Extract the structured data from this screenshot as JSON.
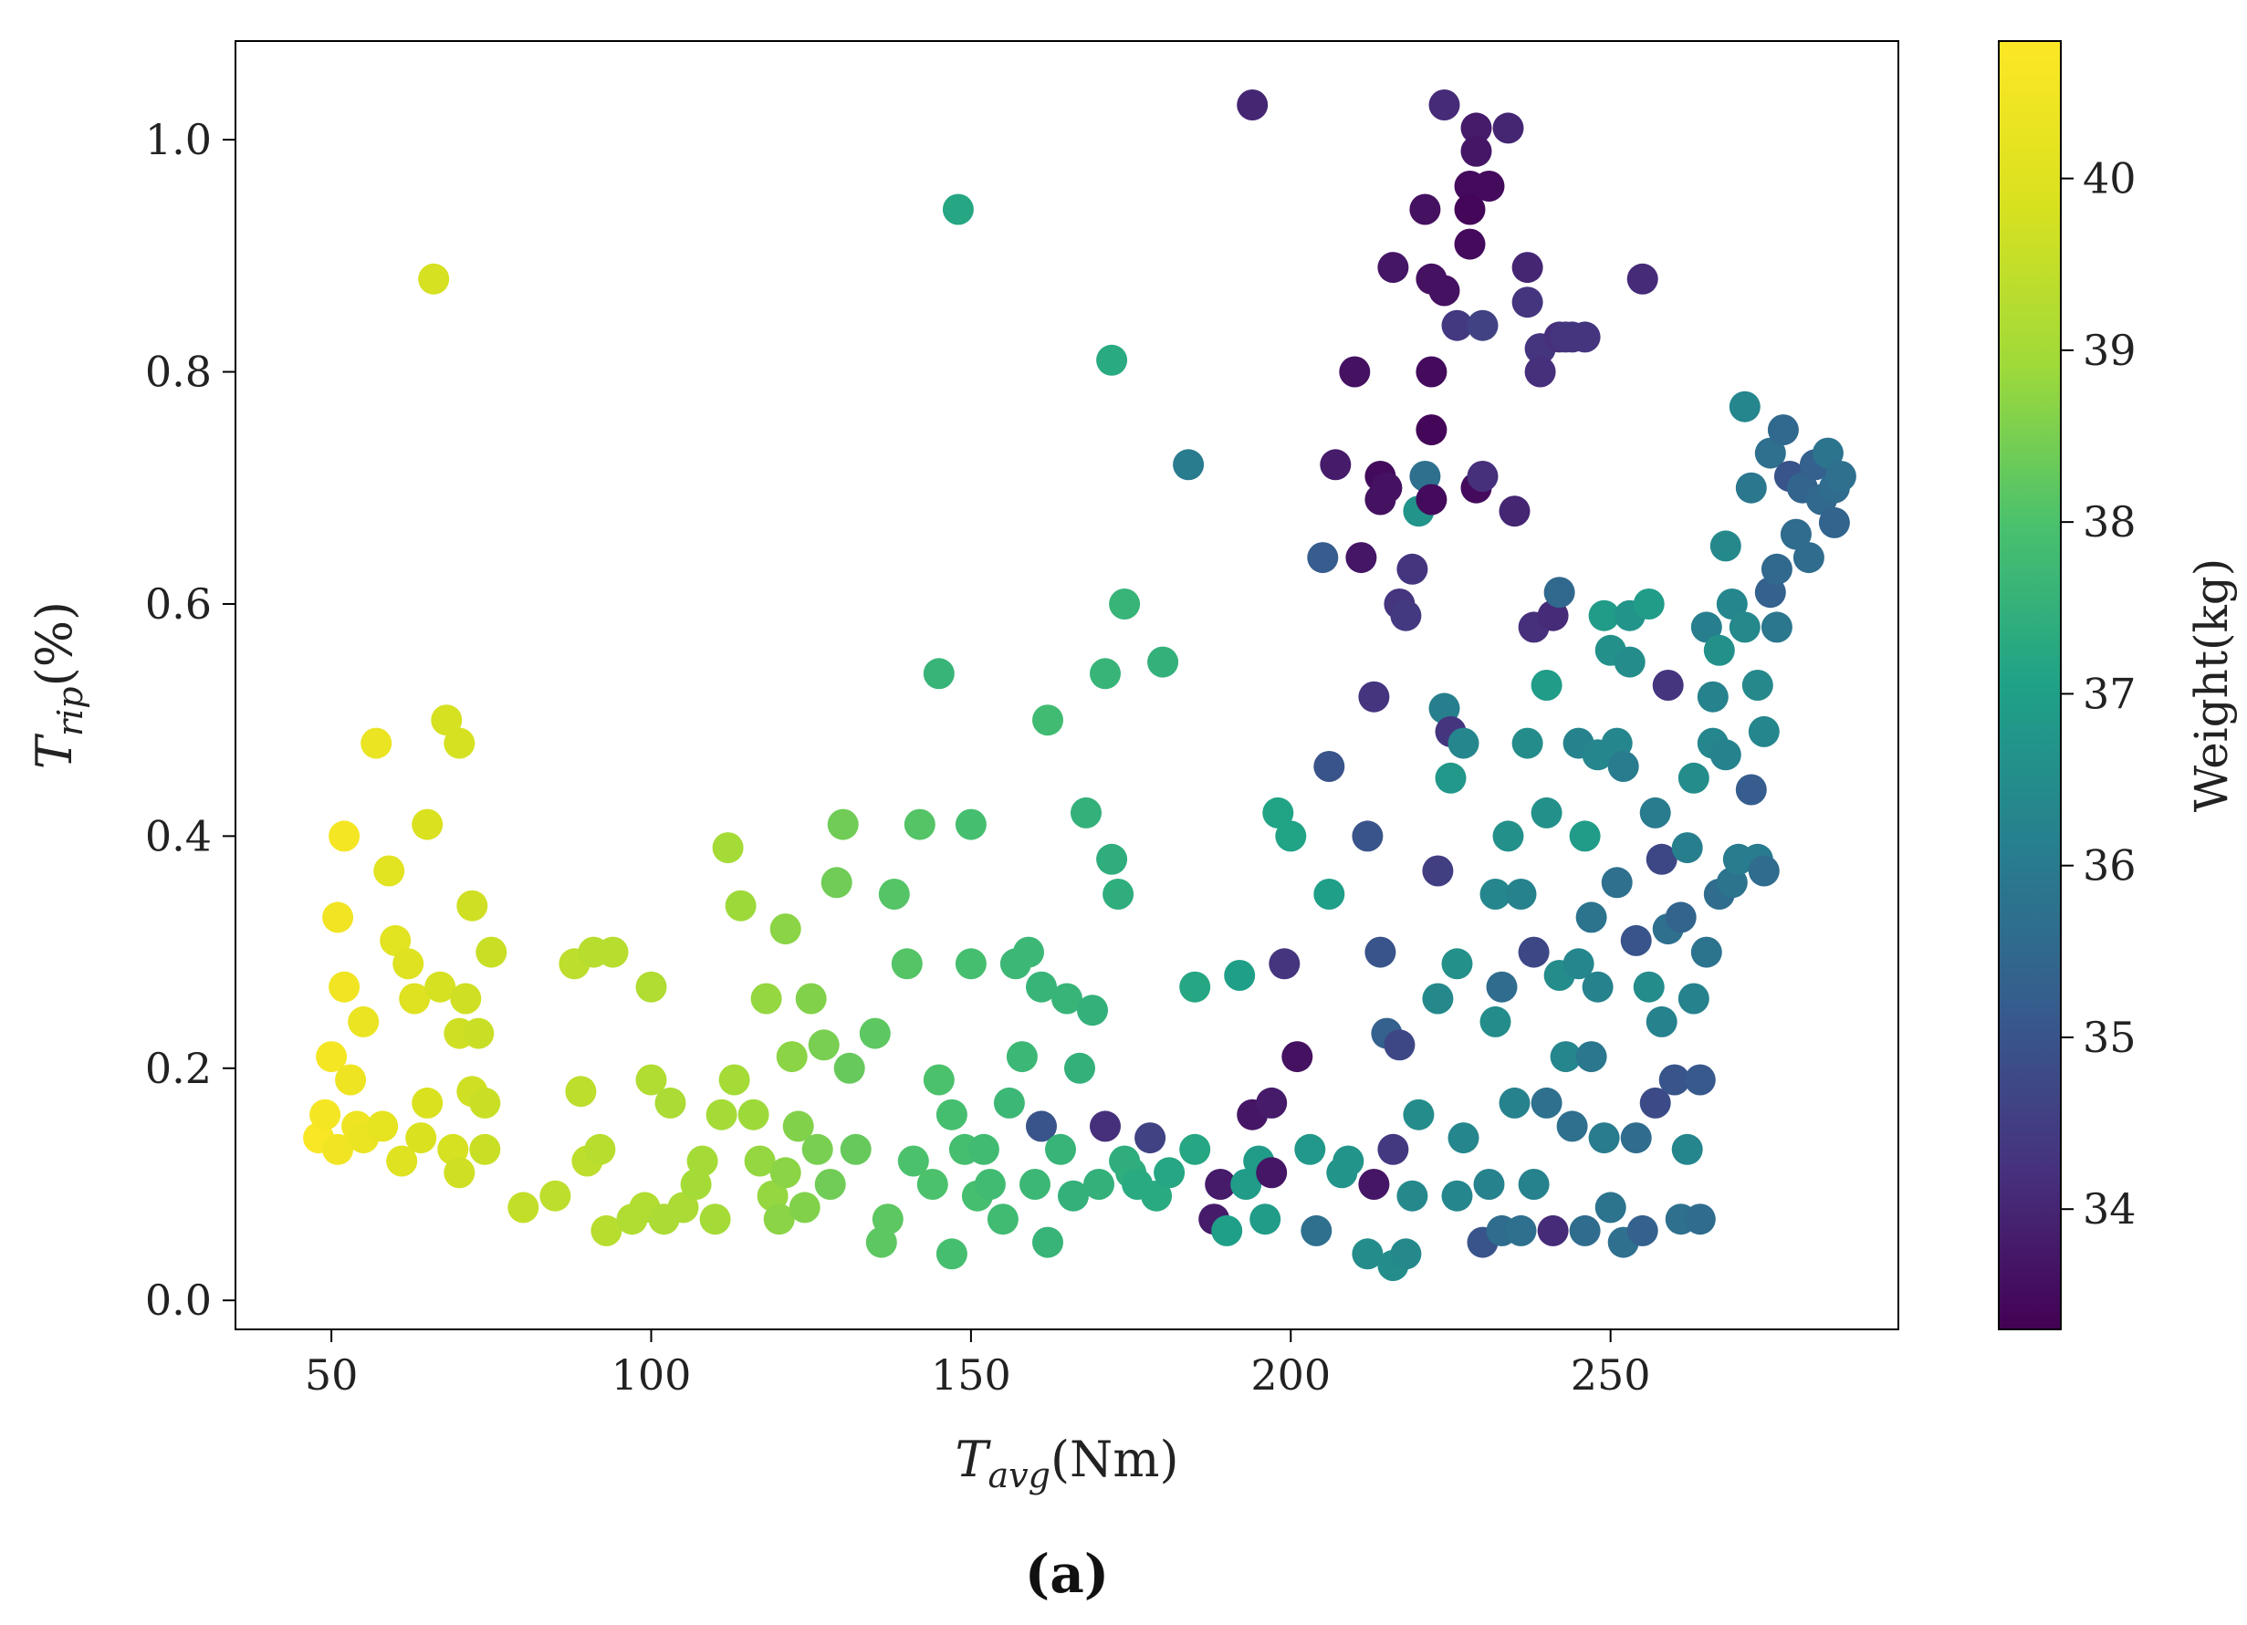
{
  "chart_data": {
    "type": "scatter",
    "title": "",
    "caption": "(a)",
    "xlabel": {
      "main": "T",
      "sub": "avg",
      "unit": "(Nm)"
    },
    "ylabel": {
      "main": "T",
      "sub": "rip",
      "unit": "(%)"
    },
    "xlim": [
      35,
      295
    ],
    "ylim": [
      -0.025,
      1.085
    ],
    "xticks": [
      50,
      100,
      150,
      200,
      250
    ],
    "yticks": [
      0.0,
      0.2,
      0.4,
      0.6,
      0.8,
      1.0
    ],
    "xtick_labels": [
      "50",
      "100",
      "150",
      "200",
      "250"
    ],
    "ytick_labels": [
      "0.0",
      "0.2",
      "0.4",
      "0.6",
      "0.8",
      "1.0"
    ],
    "grid": false,
    "legend": "none",
    "colorbar": {
      "label": "Weight(kg)",
      "colormap": "viridis",
      "range": [
        33.3,
        40.8
      ],
      "ticks": [
        34,
        35,
        36,
        37,
        38,
        39,
        40
      ],
      "tick_labels": [
        "34",
        "35",
        "36",
        "37",
        "38",
        "39",
        "40"
      ]
    },
    "points": [
      [
        48,
        0.14,
        40.7
      ],
      [
        49,
        0.16,
        40.6
      ],
      [
        50,
        0.21,
        40.6
      ],
      [
        51,
        0.13,
        40.5
      ],
      [
        52,
        0.4,
        40.6
      ],
      [
        51,
        0.33,
        40.5
      ],
      [
        52,
        0.27,
        40.5
      ],
      [
        53,
        0.19,
        40.4
      ],
      [
        54,
        0.15,
        40.4
      ],
      [
        55,
        0.24,
        40.3
      ],
      [
        55,
        0.14,
        40.3
      ],
      [
        57,
        0.48,
        40.3
      ],
      [
        58,
        0.15,
        40.2
      ],
      [
        59,
        0.37,
        40.1
      ],
      [
        60,
        0.31,
        40.1
      ],
      [
        61,
        0.12,
        40.0
      ],
      [
        62,
        0.29,
        40.0
      ],
      [
        63,
        0.26,
        40.0
      ],
      [
        64,
        0.14,
        39.9
      ],
      [
        65,
        0.17,
        39.9
      ],
      [
        65,
        0.41,
        39.9
      ],
      [
        66,
        0.88,
        39.8
      ],
      [
        67,
        0.27,
        39.8
      ],
      [
        68,
        0.5,
        39.8
      ],
      [
        69,
        0.13,
        39.8
      ],
      [
        70,
        0.11,
        39.7
      ],
      [
        70,
        0.48,
        39.8
      ],
      [
        70,
        0.23,
        39.7
      ],
      [
        71,
        0.26,
        39.7
      ],
      [
        72,
        0.34,
        39.7
      ],
      [
        72,
        0.18,
        39.7
      ],
      [
        73,
        0.23,
        39.6
      ],
      [
        74,
        0.17,
        39.6
      ],
      [
        74,
        0.13,
        39.6
      ],
      [
        75,
        0.3,
        39.6
      ],
      [
        80,
        0.08,
        39.5
      ],
      [
        85,
        0.09,
        39.4
      ],
      [
        88,
        0.29,
        39.4
      ],
      [
        89,
        0.18,
        39.4
      ],
      [
        90,
        0.12,
        39.4
      ],
      [
        91,
        0.3,
        39.3
      ],
      [
        92,
        0.13,
        39.3
      ],
      [
        93,
        0.06,
        39.3
      ],
      [
        94,
        0.3,
        39.3
      ],
      [
        97,
        0.07,
        39.2
      ],
      [
        99,
        0.08,
        39.2
      ],
      [
        100,
        0.27,
        39.2
      ],
      [
        100,
        0.19,
        39.2
      ],
      [
        102,
        0.07,
        39.1
      ],
      [
        103,
        0.17,
        39.1
      ],
      [
        105,
        0.08,
        39.1
      ],
      [
        107,
        0.1,
        39.0
      ],
      [
        108,
        0.12,
        39.0
      ],
      [
        110,
        0.07,
        39.0
      ],
      [
        111,
        0.16,
        39.0
      ],
      [
        112,
        0.39,
        39.0
      ],
      [
        113,
        0.19,
        39.0
      ],
      [
        114,
        0.34,
        38.9
      ],
      [
        116,
        0.16,
        38.9
      ],
      [
        117,
        0.12,
        38.8
      ],
      [
        118,
        0.26,
        38.8
      ],
      [
        119,
        0.09,
        38.8
      ],
      [
        120,
        0.07,
        38.7
      ],
      [
        121,
        0.11,
        38.7
      ],
      [
        121,
        0.32,
        38.7
      ],
      [
        122,
        0.21,
        38.7
      ],
      [
        123,
        0.15,
        38.6
      ],
      [
        124,
        0.08,
        38.6
      ],
      [
        125,
        0.26,
        38.6
      ],
      [
        126,
        0.13,
        38.5
      ],
      [
        127,
        0.22,
        38.5
      ],
      [
        128,
        0.1,
        38.4
      ],
      [
        129,
        0.36,
        38.4
      ],
      [
        130,
        0.41,
        38.4
      ],
      [
        131,
        0.2,
        38.3
      ],
      [
        132,
        0.13,
        38.3
      ],
      [
        135,
        0.23,
        38.2
      ],
      [
        136,
        0.05,
        38.2
      ],
      [
        137,
        0.07,
        38.2
      ],
      [
        138,
        0.35,
        38.1
      ],
      [
        140,
        0.29,
        38.1
      ],
      [
        141,
        0.12,
        38.0
      ],
      [
        142,
        0.41,
        38.1
      ],
      [
        144,
        0.1,
        38.0
      ],
      [
        145,
        0.19,
        38.0
      ],
      [
        145,
        0.54,
        37.6
      ],
      [
        147,
        0.16,
        37.9
      ],
      [
        147,
        0.04,
        37.9
      ],
      [
        148,
        0.94,
        37.2
      ],
      [
        149,
        0.13,
        37.9
      ],
      [
        150,
        0.41,
        37.9
      ],
      [
        150,
        0.29,
        37.9
      ],
      [
        151,
        0.09,
        37.9
      ],
      [
        152,
        0.13,
        37.8
      ],
      [
        153,
        0.1,
        37.8
      ],
      [
        155,
        0.07,
        37.8
      ],
      [
        156,
        0.17,
        37.7
      ],
      [
        157,
        0.29,
        37.7
      ],
      [
        158,
        0.21,
        37.7
      ],
      [
        159,
        0.3,
        37.7
      ],
      [
        160,
        0.1,
        37.7
      ],
      [
        161,
        0.15,
        35.0
      ],
      [
        161,
        0.27,
        37.6
      ],
      [
        162,
        0.05,
        37.6
      ],
      [
        162,
        0.5,
        37.8
      ],
      [
        164,
        0.13,
        37.6
      ],
      [
        165,
        0.26,
        37.6
      ],
      [
        166,
        0.09,
        37.5
      ],
      [
        167,
        0.2,
        37.5
      ],
      [
        168,
        0.42,
        37.5
      ],
      [
        169,
        0.25,
        37.5
      ],
      [
        170,
        0.1,
        37.5
      ],
      [
        171,
        0.15,
        34.2
      ],
      [
        171,
        0.54,
        37.6
      ],
      [
        172,
        0.81,
        37.3
      ],
      [
        172,
        0.38,
        37.4
      ],
      [
        173,
        0.35,
        37.4
      ],
      [
        174,
        0.6,
        37.6
      ],
      [
        174,
        0.12,
        37.4
      ],
      [
        175,
        0.11,
        37.4
      ],
      [
        176,
        0.1,
        37.3
      ],
      [
        178,
        0.14,
        34.6
      ],
      [
        179,
        0.09,
        37.3
      ],
      [
        180,
        0.55,
        37.5
      ],
      [
        181,
        0.11,
        37.2
      ],
      [
        184,
        0.72,
        36.0
      ],
      [
        185,
        0.27,
        37.2
      ],
      [
        185,
        0.13,
        37.2
      ],
      [
        188,
        0.07,
        33.8
      ],
      [
        189,
        0.1,
        33.8
      ],
      [
        190,
        0.06,
        37.0
      ],
      [
        192,
        0.28,
        37.0
      ],
      [
        193,
        0.1,
        36.9
      ],
      [
        194,
        0.16,
        33.7
      ],
      [
        194,
        1.03,
        34.0
      ],
      [
        195,
        0.12,
        36.9
      ],
      [
        196,
        0.07,
        36.9
      ],
      [
        197,
        0.17,
        33.8
      ],
      [
        197,
        0.11,
        33.7
      ],
      [
        198,
        0.42,
        37.1
      ],
      [
        199,
        0.29,
        34.3
      ],
      [
        200,
        0.4,
        37.1
      ],
      [
        201,
        0.21,
        33.6
      ],
      [
        203,
        0.13,
        36.8
      ],
      [
        204,
        0.06,
        35.7
      ],
      [
        205,
        0.64,
        35.2
      ],
      [
        206,
        0.46,
        35.0
      ],
      [
        206,
        0.35,
        37.0
      ],
      [
        207,
        0.72,
        33.8
      ],
      [
        208,
        0.11,
        36.7
      ],
      [
        209,
        0.12,
        36.7
      ],
      [
        210,
        0.8,
        33.6
      ],
      [
        211,
        0.64,
        33.7
      ],
      [
        212,
        0.04,
        36.5
      ],
      [
        212,
        0.4,
        35.0
      ],
      [
        213,
        0.52,
        34.3
      ],
      [
        213,
        0.1,
        33.7
      ],
      [
        214,
        0.71,
        33.5
      ],
      [
        214,
        0.69,
        33.6
      ],
      [
        214,
        0.3,
        35.0
      ],
      [
        215,
        0.23,
        35.3
      ],
      [
        215,
        0.7,
        33.6
      ],
      [
        216,
        0.03,
        36.5
      ],
      [
        216,
        0.89,
        33.7
      ],
      [
        216,
        0.13,
        34.4
      ],
      [
        217,
        0.22,
        34.7
      ],
      [
        217,
        0.6,
        34.3
      ],
      [
        218,
        0.59,
        34.4
      ],
      [
        218,
        0.04,
        36.4
      ],
      [
        219,
        0.63,
        34.3
      ],
      [
        219,
        0.09,
        36.4
      ],
      [
        220,
        0.16,
        36.5
      ],
      [
        220,
        0.68,
        36.7
      ],
      [
        221,
        0.94,
        33.6
      ],
      [
        221,
        0.71,
        35.7
      ],
      [
        222,
        0.88,
        33.6
      ],
      [
        222,
        0.8,
        33.5
      ],
      [
        222,
        0.75,
        33.4
      ],
      [
        222,
        0.69,
        33.5
      ],
      [
        223,
        0.37,
        34.5
      ],
      [
        223,
        0.26,
        36.4
      ],
      [
        224,
        1.03,
        34.1
      ],
      [
        224,
        0.87,
        33.6
      ],
      [
        224,
        0.51,
        36.1
      ],
      [
        225,
        0.49,
        34.3
      ],
      [
        225,
        0.45,
        36.8
      ],
      [
        226,
        0.84,
        34.4
      ],
      [
        226,
        0.29,
        36.6
      ],
      [
        226,
        0.09,
        36.3
      ],
      [
        227,
        0.48,
        36.3
      ],
      [
        227,
        0.14,
        36.3
      ],
      [
        228,
        0.91,
        33.5
      ],
      [
        228,
        0.96,
        33.5
      ],
      [
        228,
        0.94,
        33.4
      ],
      [
        229,
        1.01,
        33.8
      ],
      [
        229,
        0.99,
        33.7
      ],
      [
        229,
        0.7,
        33.5
      ],
      [
        230,
        0.84,
        34.6
      ],
      [
        230,
        0.71,
        34.2
      ],
      [
        230,
        0.05,
        35.0
      ],
      [
        231,
        0.96,
        33.5
      ],
      [
        231,
        0.1,
        36.2
      ],
      [
        232,
        0.24,
        36.5
      ],
      [
        232,
        0.35,
        36.3
      ],
      [
        233,
        0.27,
        35.6
      ],
      [
        233,
        0.06,
        35.6
      ],
      [
        234,
        0.4,
        36.6
      ],
      [
        234,
        1.01,
        34.0
      ],
      [
        235,
        0.68,
        34.0
      ],
      [
        235,
        0.17,
        36.2
      ],
      [
        236,
        0.35,
        36.2
      ],
      [
        236,
        0.06,
        35.7
      ],
      [
        237,
        0.89,
        34.0
      ],
      [
        237,
        0.86,
        34.3
      ],
      [
        237,
        0.48,
        36.5
      ],
      [
        238,
        0.58,
        34.2
      ],
      [
        238,
        0.3,
        34.7
      ],
      [
        238,
        0.1,
        36.2
      ],
      [
        239,
        0.82,
        34.3
      ],
      [
        239,
        0.8,
        34.2
      ],
      [
        240,
        0.42,
        36.6
      ],
      [
        240,
        0.53,
        36.9
      ],
      [
        240,
        0.17,
        35.7
      ],
      [
        241,
        0.59,
        34.1
      ],
      [
        241,
        0.06,
        34.1
      ],
      [
        242,
        0.83,
        34.2
      ],
      [
        242,
        0.61,
        35.5
      ],
      [
        242,
        0.28,
        36.5
      ],
      [
        243,
        0.83,
        34.3
      ],
      [
        243,
        0.21,
        36.3
      ],
      [
        244,
        0.15,
        35.7
      ],
      [
        244,
        0.83,
        34.3
      ],
      [
        245,
        0.48,
        36.2
      ],
      [
        245,
        0.29,
        36.3
      ],
      [
        246,
        0.83,
        34.3
      ],
      [
        246,
        0.4,
        36.9
      ],
      [
        246,
        0.06,
        35.6
      ],
      [
        247,
        0.33,
        35.8
      ],
      [
        247,
        0.21,
        35.9
      ],
      [
        248,
        0.27,
        36.2
      ],
      [
        248,
        0.47,
        36.3
      ],
      [
        249,
        0.59,
        36.9
      ],
      [
        249,
        0.14,
        36.0
      ],
      [
        250,
        0.56,
        36.6
      ],
      [
        250,
        0.08,
        35.8
      ],
      [
        251,
        0.48,
        36.3
      ],
      [
        251,
        0.36,
        35.7
      ],
      [
        252,
        0.46,
        36.0
      ],
      [
        252,
        0.05,
        35.7
      ],
      [
        253,
        0.55,
        36.5
      ],
      [
        253,
        0.59,
        36.7
      ],
      [
        254,
        0.31,
        35.0
      ],
      [
        254,
        0.14,
        35.6
      ],
      [
        255,
        0.88,
        34.1
      ],
      [
        255,
        0.06,
        35.3
      ],
      [
        256,
        0.6,
        36.9
      ],
      [
        256,
        0.27,
        36.5
      ],
      [
        257,
        0.42,
        36.0
      ],
      [
        257,
        0.17,
        34.8
      ],
      [
        258,
        0.38,
        34.7
      ],
      [
        258,
        0.24,
        36.2
      ],
      [
        259,
        0.53,
        34.3
      ],
      [
        259,
        0.32,
        35.7
      ],
      [
        260,
        0.19,
        35.0
      ],
      [
        261,
        0.33,
        35.4
      ],
      [
        261,
        0.07,
        35.7
      ],
      [
        262,
        0.39,
        36.1
      ],
      [
        262,
        0.13,
        36.3
      ],
      [
        263,
        0.45,
        36.5
      ],
      [
        263,
        0.26,
        36.2
      ],
      [
        264,
        0.07,
        35.6
      ],
      [
        264,
        0.19,
        35.1
      ],
      [
        265,
        0.58,
        36.1
      ],
      [
        265,
        0.3,
        35.8
      ],
      [
        266,
        0.52,
        36.2
      ],
      [
        266,
        0.48,
        36.3
      ],
      [
        267,
        0.56,
        36.6
      ],
      [
        267,
        0.35,
        35.6
      ],
      [
        268,
        0.65,
        36.4
      ],
      [
        268,
        0.47,
        36.2
      ],
      [
        269,
        0.6,
        36.3
      ],
      [
        269,
        0.36,
        35.8
      ],
      [
        270,
        0.38,
        36.0
      ],
      [
        271,
        0.77,
        36.3
      ],
      [
        271,
        0.58,
        36.4
      ],
      [
        272,
        0.7,
        35.9
      ],
      [
        272,
        0.44,
        35.2
      ],
      [
        273,
        0.38,
        36.0
      ],
      [
        273,
        0.53,
        36.4
      ],
      [
        274,
        0.49,
        36.3
      ],
      [
        274,
        0.37,
        35.6
      ],
      [
        275,
        0.73,
        35.7
      ],
      [
        275,
        0.61,
        35.3
      ],
      [
        276,
        0.63,
        35.5
      ],
      [
        276,
        0.58,
        35.9
      ],
      [
        277,
        0.75,
        35.5
      ],
      [
        278,
        0.71,
        35.0
      ],
      [
        279,
        0.66,
        35.6
      ],
      [
        280,
        0.7,
        35.4
      ],
      [
        281,
        0.64,
        35.6
      ],
      [
        282,
        0.72,
        35.3
      ],
      [
        283,
        0.69,
        35.5
      ],
      [
        284,
        0.73,
        35.8
      ],
      [
        285,
        0.7,
        35.6
      ],
      [
        285,
        0.67,
        35.4
      ],
      [
        286,
        0.71,
        35.7
      ]
    ]
  }
}
